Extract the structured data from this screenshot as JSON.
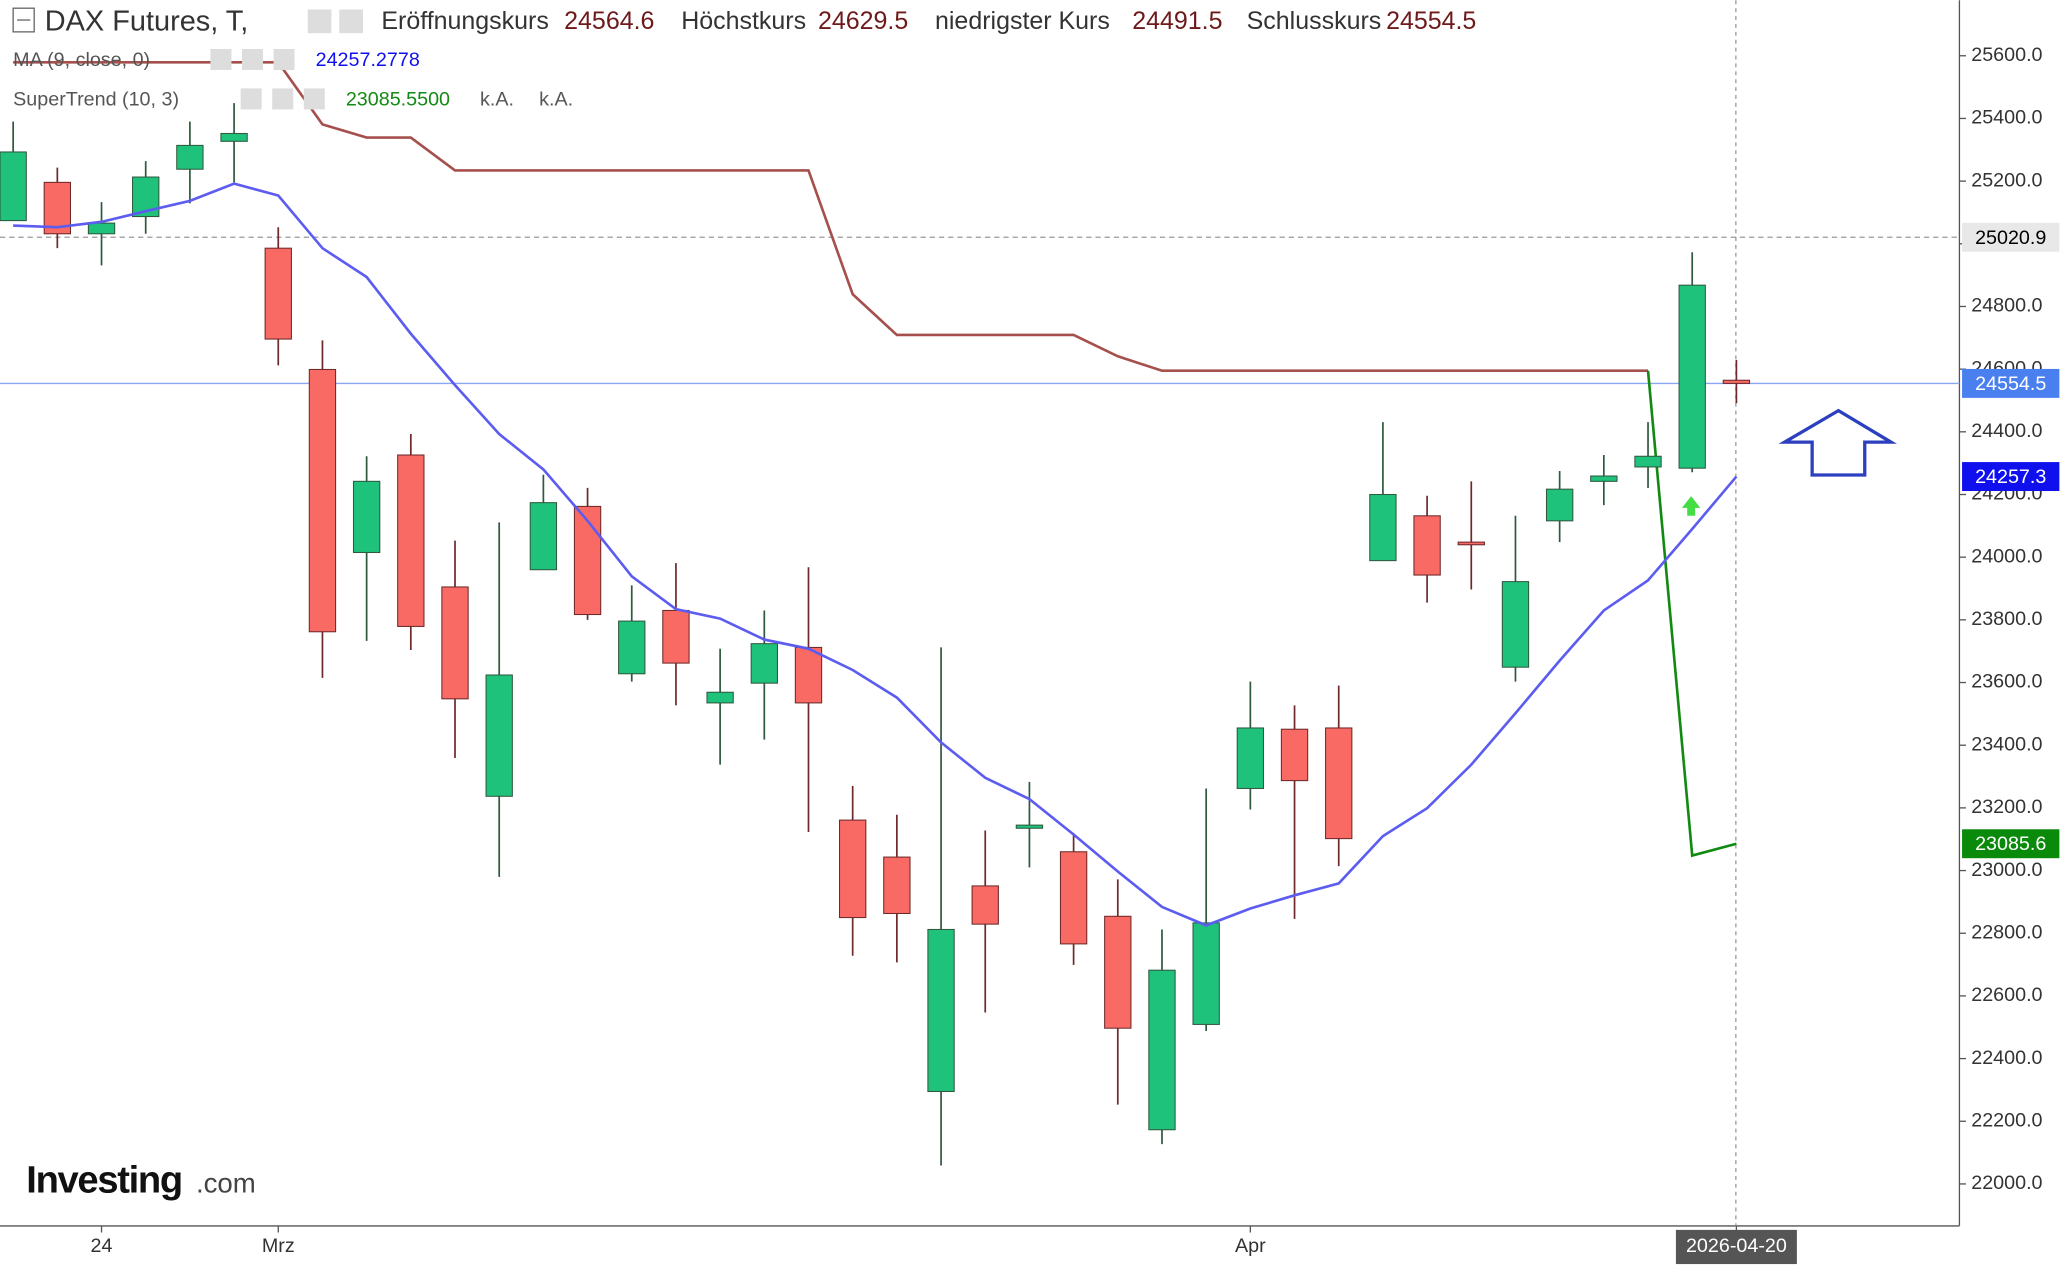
{
  "chart_data": {
    "type": "candlestick",
    "title": "DAX Futures, T,",
    "header": [
      {
        "label": "Eröffnungskurs",
        "value": "24564.6"
      },
      {
        "label": "Höchstkurs",
        "value": "24629.5"
      },
      {
        "label": "niedrigster Kurs",
        "value": "24491.5"
      },
      {
        "label": "Schlusskurs",
        "value": "24554.5"
      }
    ],
    "categories": [
      null,
      null,
      "24",
      null,
      null,
      null,
      "Mrz",
      null,
      null,
      null,
      null,
      null,
      null,
      null,
      null,
      null,
      null,
      null,
      null,
      null,
      null,
      null,
      null,
      null,
      null,
      null,
      null,
      null,
      "Apr",
      null,
      null,
      null,
      null,
      null,
      null,
      null,
      null,
      null,
      null,
      "2026-04-20"
    ],
    "ohlc": {
      "open": [
        25074,
        25196,
        25032,
        25087,
        25238,
        25327,
        24986,
        24599,
        24015,
        24326,
        23905,
        23237,
        23960,
        24162,
        23628,
        23830,
        23535,
        23598,
        23712,
        23161,
        23043,
        22295,
        22951,
        23135,
        23060,
        22854,
        22173,
        22509,
        23262,
        23451,
        23455,
        23989,
        24132,
        24048,
        23649,
        24116,
        24242,
        24288,
        24284,
        24564.6
      ],
      "high": [
        25390,
        25243,
        25133,
        25264,
        25390,
        25449,
        25053,
        24692,
        24322,
        24393,
        24053,
        24111,
        24263,
        24221,
        23910,
        23981,
        23708,
        23830,
        23968,
        23270,
        23178,
        23712,
        23128,
        23283,
        23119,
        22972,
        22812,
        23262,
        23603,
        23527,
        23590,
        24431,
        24196,
        24242,
        24132,
        24275,
        24326,
        24431,
        24973,
        24629.5
      ],
      "low": [
        25074,
        24986,
        24931,
        25032,
        25129,
        25196,
        24612,
        23615,
        23733,
        23704,
        23359,
        22980,
        23960,
        23800,
        23603,
        23527,
        23338,
        23418,
        23123,
        22728,
        22707,
        22059,
        22547,
        23010,
        22699,
        22253,
        22127,
        22488,
        23195,
        22846,
        23014,
        23989,
        23855,
        23897,
        23603,
        24048,
        24166,
        24221,
        24271,
        24491.5
      ],
      "close": [
        25293,
        25032,
        25066,
        25213,
        25314,
        25352,
        24696,
        23762,
        24242,
        23779,
        23548,
        23624,
        24174,
        23817,
        23796,
        23662,
        23569,
        23724,
        23535,
        22850,
        22863,
        22812,
        22829,
        23145,
        22766,
        22497,
        22682,
        22833,
        23455,
        23287,
        23102,
        24200,
        23943,
        24044,
        23922,
        24217,
        24259,
        24322,
        24868,
        24554.5
      ]
    },
    "up_color": "#1ec27b",
    "down_color": "#f96a65",
    "indicators": [
      {
        "label": "MA (9, close, 0)",
        "value_label": "24257.2778",
        "color": "#5c5cf0",
        "values": [
          25058,
          25053,
          25070,
          25104,
          25137,
          25192,
          25154,
          24986,
          24894,
          24713,
          24549,
          24393,
          24280,
          24116,
          23939,
          23834,
          23804,
          23737,
          23708,
          23640,
          23552,
          23409,
          23296,
          23228,
          23115,
          22997,
          22884,
          22825,
          22879,
          22921,
          22959,
          23110,
          23199,
          23338,
          23502,
          23670,
          23830,
          23926,
          24090,
          24257.2778
        ]
      },
      {
        "label": "SuperTrend (10, 3)",
        "value_label": "23085.5500",
        "extra_labels": [
          "k.A.",
          "k.A."
        ],
        "color": "#128a12",
        "down_color": "#a5504d",
        "down_values": [
          25579,
          25579,
          25579,
          25579,
          25579,
          25579,
          25579,
          25381,
          25339,
          25339,
          25234,
          25234,
          25234,
          25234,
          25234,
          25234,
          25234,
          25234,
          25234,
          24839,
          24709,
          24709,
          24709,
          24709,
          24709,
          24641,
          24595,
          24595,
          24595,
          24595,
          24595,
          24595,
          24595,
          24595,
          24595,
          24595,
          24595,
          24595,
          null,
          null
        ],
        "values": [
          null,
          null,
          null,
          null,
          null,
          null,
          null,
          null,
          null,
          null,
          null,
          null,
          null,
          null,
          null,
          null,
          null,
          null,
          null,
          null,
          null,
          null,
          null,
          null,
          null,
          null,
          null,
          null,
          null,
          null,
          null,
          null,
          null,
          null,
          null,
          null,
          null,
          24595,
          23048,
          23085.55
        ]
      }
    ],
    "ylim": [
      21866,
      25777
    ],
    "yticks": [
      {
        "value": 22000,
        "label": "22000.0"
      },
      {
        "value": 22200,
        "label": "22200.0"
      },
      {
        "value": 22400,
        "label": "22400.0"
      },
      {
        "value": 22600,
        "label": "22600.0"
      },
      {
        "value": 22800,
        "label": "22800.0"
      },
      {
        "value": 23000,
        "label": "23000.0"
      },
      {
        "value": 23200,
        "label": "23200.0"
      },
      {
        "value": 23400,
        "label": "23400.0"
      },
      {
        "value": 23600,
        "label": "23600.0"
      },
      {
        "value": 23800,
        "label": "23800.0"
      },
      {
        "value": 24000,
        "label": "24000.0"
      },
      {
        "value": 24200,
        "label": "24200.0"
      },
      {
        "value": 24400,
        "label": "24400.0"
      },
      {
        "value": 24600,
        "label": "24600.0"
      },
      {
        "value": 24800,
        "label": "24800.0"
      },
      {
        "value": 25000,
        "label": "25000.0"
      },
      {
        "value": 25200,
        "label": "25200.0"
      },
      {
        "value": 25400,
        "label": "25400.0"
      },
      {
        "value": 25600,
        "label": "25600.0"
      }
    ],
    "price_tags": [
      {
        "value": 25020.9,
        "color": "#e8e8e8",
        "text_color": "#000000",
        "line": "#999999"
      },
      {
        "value": 24554.5,
        "color": "#4a7ff0",
        "text_color": "#ffffff",
        "line": "#8aa8f0"
      },
      {
        "value": 24257.3,
        "color": "#1010ee",
        "text_color": "#ffffff"
      },
      {
        "value": 23085.6,
        "color": "#0a8a0a",
        "text_color": "#ffffff"
      }
    ],
    "watermark": [
      "Investing",
      ".com"
    ]
  }
}
